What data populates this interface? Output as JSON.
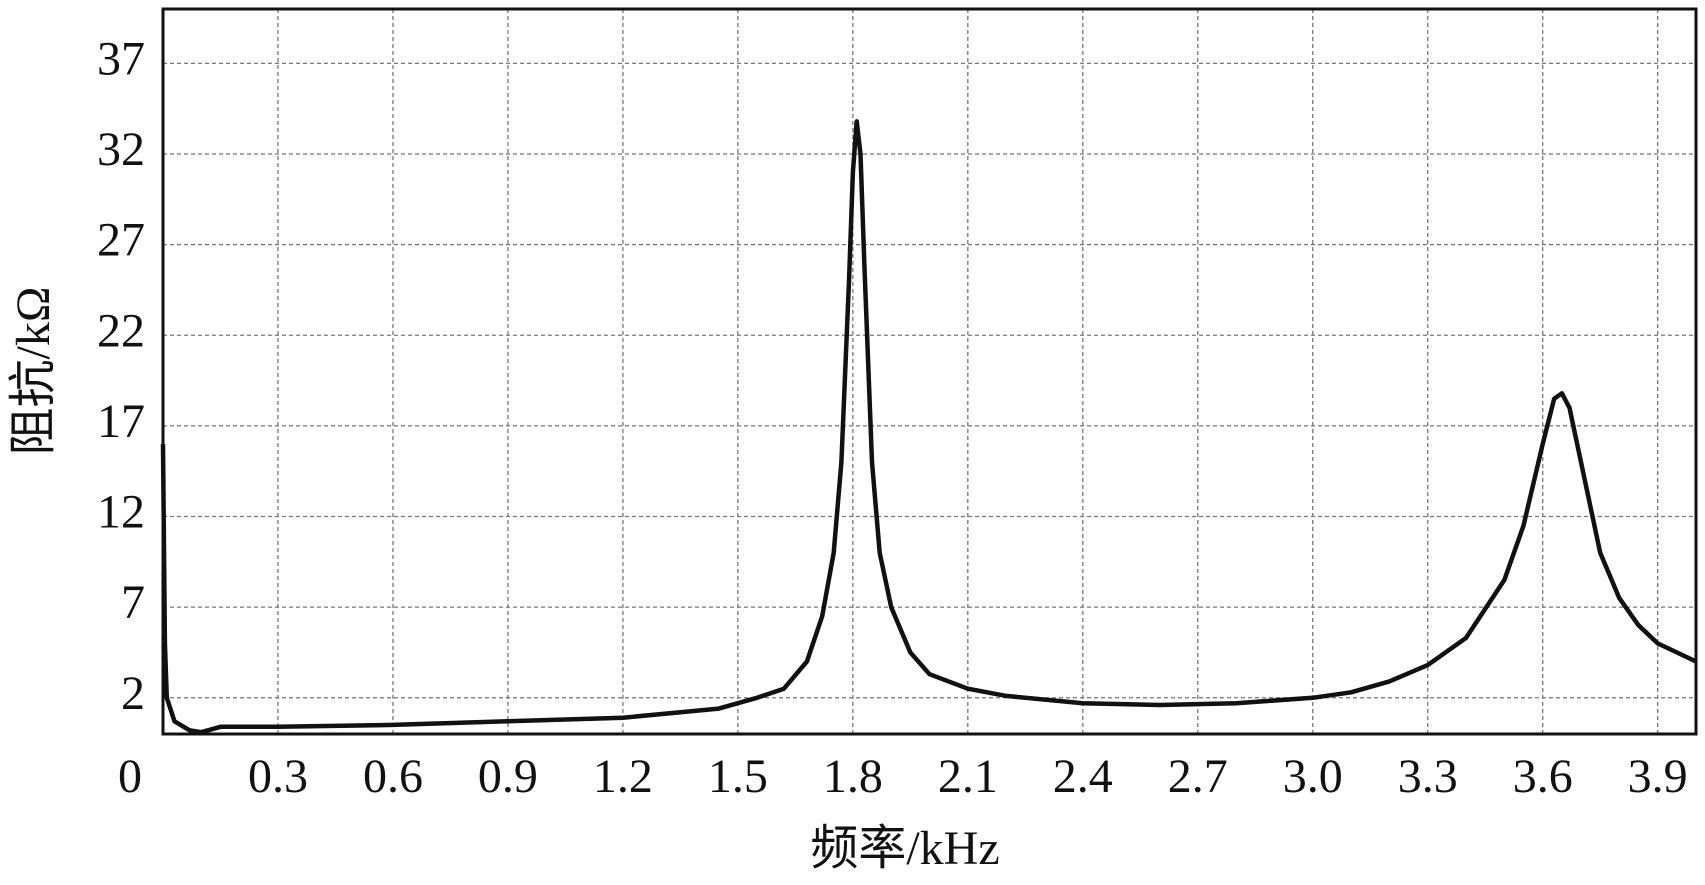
{
  "chart_data": {
    "type": "line",
    "x_label": "频率/kHz",
    "y_label": "阻抗/kΩ",
    "xlim": [
      0,
      4
    ],
    "ylim": [
      0,
      40
    ],
    "xticks": [
      0,
      0.3,
      0.6,
      0.9,
      1.2,
      1.5,
      1.8,
      2.1,
      2.4,
      2.7,
      {
        "value": 3,
        "label": "3.0"
      },
      3.3,
      3.6,
      3.9
    ],
    "yticks": [
      2,
      7,
      12,
      17,
      22,
      27,
      32,
      37
    ],
    "grid": true,
    "series": [
      {
        "color": "#111111",
        "x": [
          0,
          0.005,
          0.01,
          0.03,
          0.07,
          0.1,
          0.15,
          0.3,
          0.6,
          0.9,
          1.2,
          1.35,
          1.45,
          1.55,
          1.62,
          1.68,
          1.72,
          1.75,
          1.77,
          1.79,
          1.8,
          1.81,
          1.82,
          1.83,
          1.85,
          1.87,
          1.9,
          1.95,
          2.0,
          2.1,
          2.2,
          2.4,
          2.6,
          2.8,
          3.0,
          3.1,
          3.2,
          3.3,
          3.4,
          3.5,
          3.55,
          3.6,
          3.63,
          3.65,
          3.67,
          3.7,
          3.75,
          3.8,
          3.85,
          3.9,
          4.0
        ],
        "values": [
          16,
          5,
          2,
          0.7,
          0.2,
          0.1,
          0.4,
          0.4,
          0.5,
          0.7,
          0.9,
          1.2,
          1.4,
          2.0,
          2.5,
          4,
          6.5,
          10,
          15,
          25,
          31,
          33.8,
          32,
          26,
          15,
          10,
          7,
          4.5,
          3.3,
          2.5,
          2.1,
          1.7,
          1.6,
          1.7,
          2.0,
          2.3,
          2.9,
          3.8,
          5.3,
          8.5,
          11.5,
          16,
          18.5,
          18.8,
          18,
          15,
          10,
          7.5,
          6,
          5,
          4
        ]
      }
    ]
  }
}
